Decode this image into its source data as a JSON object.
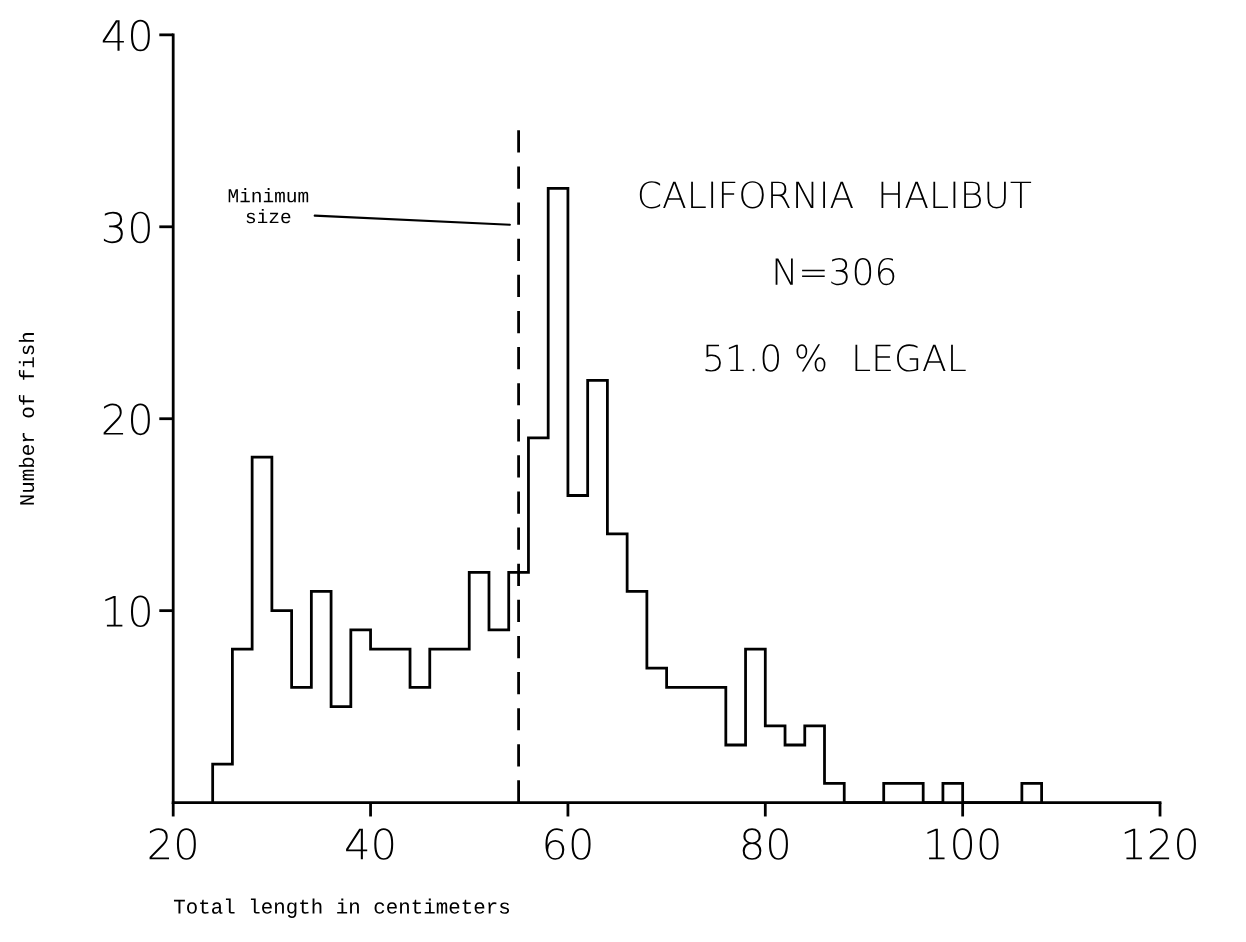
{
  "chart_data": {
    "type": "histogram",
    "xlabel": "Total length in centimeters",
    "ylabel": "Number of fish",
    "bins": [
      24,
      26,
      28,
      30,
      32,
      34,
      36,
      38,
      40,
      42,
      44,
      46,
      48,
      50,
      52,
      54,
      56,
      58,
      60,
      62,
      64,
      66,
      68,
      70,
      72,
      74,
      76,
      78,
      80,
      82,
      84,
      86,
      88,
      90,
      92,
      94,
      96,
      98,
      100,
      102,
      104,
      106,
      108
    ],
    "values": [
      2,
      8,
      18,
      10,
      6,
      11,
      5,
      9,
      8,
      8,
      6,
      8,
      8,
      12,
      9,
      12,
      19,
      32,
      16,
      22,
      14,
      11,
      7,
      6,
      6,
      6,
      3,
      8,
      4,
      3,
      4,
      1,
      0,
      0,
      1,
      1,
      0,
      1,
      0,
      0,
      0,
      1
    ],
    "color": "#000000",
    "xlim": [
      20,
      120
    ],
    "ylim": [
      0,
      40
    ],
    "xticks": [
      20,
      40,
      60,
      80,
      100,
      120
    ],
    "yticks": [
      10,
      20,
      30,
      40
    ],
    "ref_lines": [
      {
        "axis": "x",
        "value": 55,
        "label": "Minimum\nsize",
        "line_style": "dashed",
        "color": "#000000"
      }
    ],
    "annotations": [
      "CALIFORNIA  HALIBUT",
      "N=306",
      "51.0 %  LEGAL"
    ],
    "grid": false
  }
}
